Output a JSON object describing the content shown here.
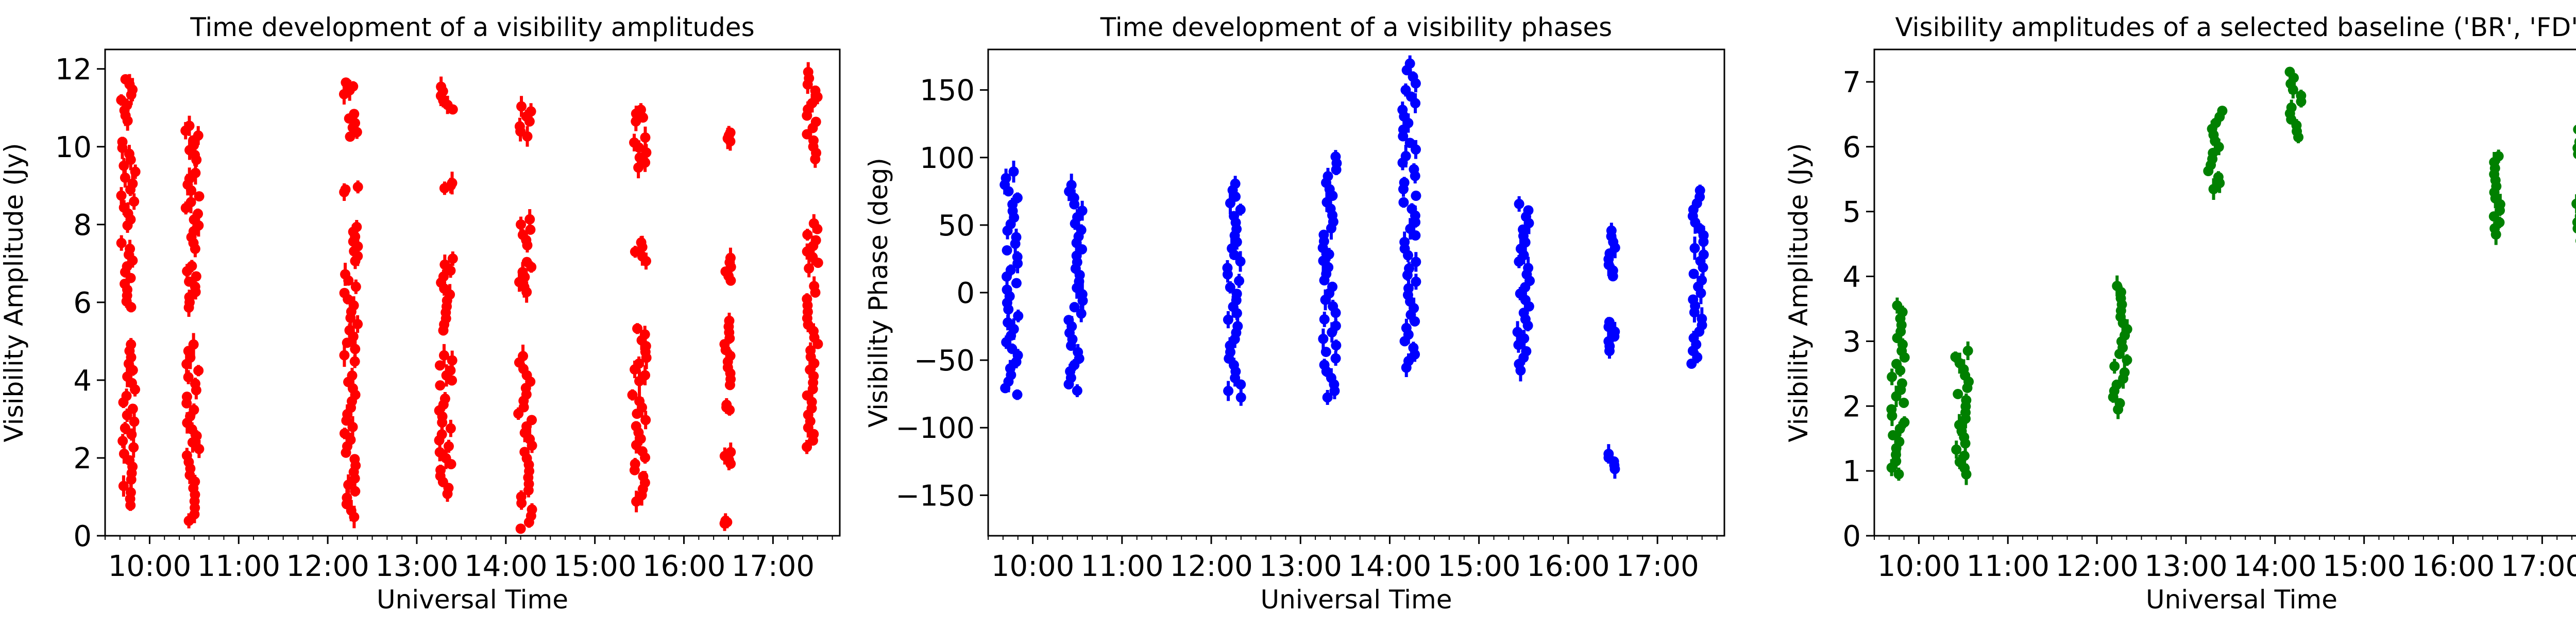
{
  "chart_data": [
    {
      "type": "scatter",
      "title": "Time development of a visibility amplitudes",
      "xlabel": "Universal Time",
      "ylabel": "Visibility Amplitude (Jy)",
      "ylim": [
        0,
        12.5
      ],
      "yticks": [
        0,
        2,
        4,
        6,
        8,
        10,
        12
      ],
      "xlim": [
        9.5,
        17.75
      ],
      "xticks": [
        10,
        11,
        12,
        13,
        14,
        15,
        16,
        17
      ],
      "xtick_labels": [
        "10:00",
        "11:00",
        "12:00",
        "13:00",
        "14:00",
        "15:00",
        "16:00",
        "17:00"
      ],
      "color": "#ff0000",
      "scans": [
        {
          "t": [
            9.68,
            9.84
          ],
          "clusters": [
            [
              0.7,
              5.0
            ],
            [
              5.8,
              7.6
            ],
            [
              7.9,
              10.2
            ],
            [
              10.6,
              11.8
            ]
          ]
        },
        {
          "t": [
            10.4,
            10.56
          ],
          "clusters": [
            [
              0.3,
              5.0
            ],
            [
              5.8,
              7.0
            ],
            [
              7.3,
              9.4
            ],
            [
              9.6,
              10.6
            ]
          ]
        },
        {
          "t": [
            12.18,
            12.34
          ],
          "clusters": [
            [
              0.4,
              4.2
            ],
            [
              4.4,
              6.8
            ],
            [
              7.0,
              8.0
            ],
            [
              8.8,
              9.0
            ],
            [
              10.2,
              10.9
            ],
            [
              11.3,
              11.7
            ]
          ]
        },
        {
          "t": [
            13.25,
            13.41
          ],
          "clusters": [
            [
              1.0,
              3.6
            ],
            [
              3.8,
              4.7
            ],
            [
              5.2,
              7.2
            ],
            [
              8.9,
              9.1
            ],
            [
              10.9,
              11.6
            ]
          ]
        },
        {
          "t": [
            14.14,
            14.3
          ],
          "clusters": [
            [
              0.1,
              4.7
            ],
            [
              6.2,
              7.1
            ],
            [
              7.4,
              8.2
            ],
            [
              10.2,
              11.1
            ]
          ]
        },
        {
          "t": [
            15.42,
            15.58
          ],
          "clusters": [
            [
              0.8,
              3.7
            ],
            [
              3.9,
              5.4
            ],
            [
              7.0,
              7.6
            ],
            [
              9.4,
              10.3
            ],
            [
              10.6,
              11.0
            ]
          ]
        },
        {
          "t": [
            16.45,
            16.53
          ],
          "clusters": [
            [
              0.3,
              0.4
            ],
            [
              1.8,
              2.2
            ],
            [
              3.2,
              3.4
            ],
            [
              3.8,
              5.6
            ],
            [
              6.5,
              7.2
            ],
            [
              10.1,
              10.4
            ]
          ]
        },
        {
          "t": [
            17.38,
            17.52
          ],
          "clusters": [
            [
              2.2,
              6.5
            ],
            [
              6.8,
              8.1
            ],
            [
              9.6,
              12.0
            ]
          ]
        }
      ]
    },
    {
      "type": "scatter",
      "title": "Time development of a visibility phases",
      "xlabel": "Universal Time",
      "ylabel": "Visibility Phase (deg)",
      "ylim": [
        -180,
        180
      ],
      "yticks": [
        -150,
        -100,
        -50,
        0,
        50,
        100,
        150
      ],
      "ytick_labels": [
        "−150",
        "−100",
        "−50",
        "0",
        "50",
        "100",
        "150"
      ],
      "xlim": [
        9.5,
        17.75
      ],
      "xticks": [
        10,
        11,
        12,
        13,
        14,
        15,
        16,
        17
      ],
      "xtick_labels": [
        "10:00",
        "11:00",
        "12:00",
        "13:00",
        "14:00",
        "15:00",
        "16:00",
        "17:00"
      ],
      "color": "#0000ff",
      "scans": [
        {
          "t": [
            9.68,
            9.84
          ],
          "clusters": [
            [
              -78,
              92
            ]
          ]
        },
        {
          "t": [
            10.4,
            10.56
          ],
          "clusters": [
            [
              -75,
              82
            ]
          ]
        },
        {
          "t": [
            12.18,
            12.34
          ],
          "clusters": [
            [
              -80,
              83
            ]
          ]
        },
        {
          "t": [
            13.25,
            13.41
          ],
          "clusters": [
            [
              -80,
              103
            ]
          ]
        },
        {
          "t": [
            14.14,
            14.3
          ],
          "clusters": [
            [
              -58,
              172
            ]
          ]
        },
        {
          "t": [
            15.42,
            15.58
          ],
          "clusters": [
            [
              -60,
              68
            ]
          ]
        },
        {
          "t": [
            16.45,
            16.53
          ],
          "clusters": [
            [
              -132,
              -118
            ],
            [
              -45,
              -20
            ],
            [
              10,
              48
            ]
          ]
        },
        {
          "t": [
            17.38,
            17.52
          ],
          "clusters": [
            [
              -55,
              78
            ]
          ]
        }
      ]
    },
    {
      "type": "scatter",
      "title": "Visibility amplitudes of a selected baseline ('BR', 'FD')",
      "xlabel": "Universal Time",
      "ylabel": "Visibility Amplitude (Jy)",
      "ylim": [
        0,
        7.5
      ],
      "yticks": [
        0,
        1,
        2,
        3,
        4,
        5,
        6,
        7
      ],
      "xlim": [
        9.5,
        17.75
      ],
      "xticks": [
        10,
        11,
        12,
        13,
        14,
        15,
        16,
        17
      ],
      "xtick_labels": [
        "10:00",
        "11:00",
        "12:00",
        "13:00",
        "14:00",
        "15:00",
        "16:00",
        "17:00"
      ],
      "color": "#008000",
      "scans": [
        {
          "t": [
            9.68,
            9.84
          ],
          "clusters": [
            [
              0.9,
              3.6
            ]
          ]
        },
        {
          "t": [
            10.4,
            10.56
          ],
          "clusters": [
            [
              0.9,
              2.9
            ]
          ]
        },
        {
          "t": [
            12.18,
            12.34
          ],
          "clusters": [
            [
              1.9,
              3.9
            ]
          ]
        },
        {
          "t": [
            13.25,
            13.41
          ],
          "clusters": [
            [
              5.3,
              6.6
            ]
          ]
        },
        {
          "t": [
            14.14,
            14.3
          ],
          "clusters": [
            [
              6.1,
              7.2
            ]
          ]
        },
        {
          "t": [
            16.45,
            16.53
          ],
          "clusters": [
            [
              4.6,
              5.9
            ]
          ]
        },
        {
          "t": [
            17.38,
            17.52
          ],
          "clusters": [
            [
              4.5,
              6.6
            ]
          ]
        }
      ]
    }
  ]
}
